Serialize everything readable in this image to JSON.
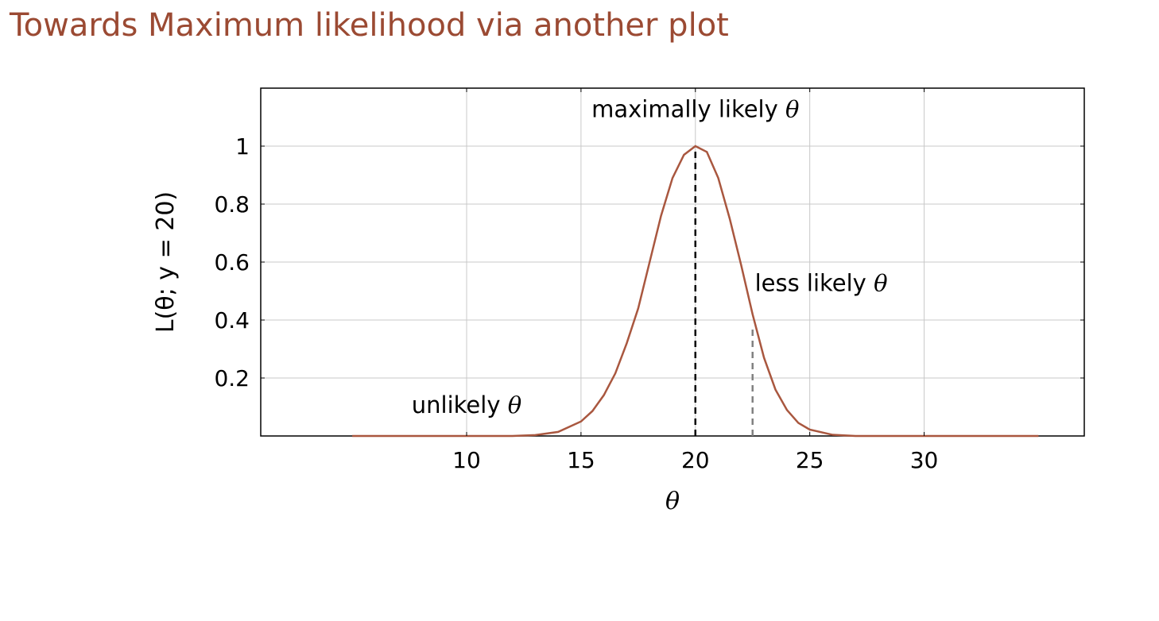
{
  "slide": {
    "title": "Towards Maximum likelihood via another plot"
  },
  "chart_data": {
    "type": "line",
    "title": "",
    "xlabel": "θ",
    "ylabel": "L(θ; y = 20)",
    "xlim": [
      1,
      37
    ],
    "ylim": [
      0,
      1.2
    ],
    "xticks": [
      10,
      15,
      20,
      25,
      30
    ],
    "xtick_labels": [
      "10",
      "15",
      "20",
      "25",
      "30"
    ],
    "yticks": [
      0.2,
      0.4,
      0.6,
      0.8,
      1
    ],
    "ytick_labels": [
      "0.2",
      "0.4",
      "0.6",
      "0.8",
      "1"
    ],
    "grid": true,
    "line_color": "#a9573f",
    "series": [
      {
        "x": [
          5,
          6,
          7,
          8,
          9,
          10,
          11,
          12,
          13,
          14,
          15,
          15.5,
          16,
          16.5,
          17,
          17.5,
          18,
          18.5,
          19,
          19.5,
          20,
          20.5,
          21,
          21.5,
          22,
          22.5,
          23,
          23.5,
          24,
          24.5,
          25,
          26,
          27,
          28,
          29,
          30,
          31,
          32,
          33,
          34,
          35
        ],
        "values": [
          0.0,
          0.0,
          0.0,
          0.0,
          0.0,
          0.0,
          0.0,
          0.0,
          0.003,
          0.014,
          0.05,
          0.086,
          0.141,
          0.216,
          0.32,
          0.44,
          0.6,
          0.76,
          0.89,
          0.97,
          1.0,
          0.98,
          0.89,
          0.75,
          0.59,
          0.42,
          0.27,
          0.16,
          0.09,
          0.045,
          0.022,
          0.004,
          0.0,
          0.0,
          0.0,
          0.0,
          0.0,
          0.0,
          0.0,
          0.0,
          0.0
        ]
      }
    ],
    "vlines": [
      {
        "x": 20,
        "y_top": 1.0,
        "style": "dashed",
        "color": "#000000"
      },
      {
        "x": 22.5,
        "y_top": 0.38,
        "style": "dashed",
        "color": "#808080"
      }
    ],
    "annotations": [
      {
        "text": "maximally likely",
        "symbol": "θ",
        "x": 20,
        "y": 1.1
      },
      {
        "text": "less likely",
        "symbol": "θ",
        "x": 25.5,
        "y": 0.5
      },
      {
        "text": "unlikely",
        "symbol": "θ",
        "x": 10,
        "y": 0.08
      }
    ]
  }
}
